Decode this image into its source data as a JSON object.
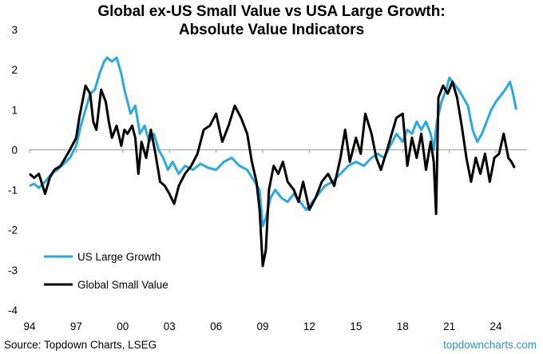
{
  "chart_data": {
    "type": "line",
    "title_line1": "Global ex-US Small Value vs USA Large Growth:",
    "title_line2": "Absolute Value Indicators",
    "xlabel": "",
    "ylabel": "",
    "xlim": [
      1994,
      2026
    ],
    "ylim": [
      -4,
      3
    ],
    "yticks": [
      {
        "v": 3,
        "label": "3"
      },
      {
        "v": 2,
        "label": "2"
      },
      {
        "v": 1,
        "label": "1"
      },
      {
        "v": 0,
        "label": "0"
      },
      {
        "v": -1,
        "label": "-1"
      },
      {
        "v": -2,
        "label": "-2"
      },
      {
        "v": -3,
        "label": "-3"
      },
      {
        "v": -4,
        "label": "-4"
      }
    ],
    "xticks": [
      {
        "v": 1994,
        "label": "94"
      },
      {
        "v": 1997,
        "label": "97"
      },
      {
        "v": 2000,
        "label": "00"
      },
      {
        "v": 2003,
        "label": "03"
      },
      {
        "v": 2006,
        "label": "06"
      },
      {
        "v": 2009,
        "label": "09"
      },
      {
        "v": 2012,
        "label": "12"
      },
      {
        "v": 2015,
        "label": "15"
      },
      {
        "v": 2018,
        "label": "18"
      },
      {
        "v": 2021,
        "label": "21"
      },
      {
        "v": 2024,
        "label": "24"
      }
    ],
    "legend_position": "bottom-left",
    "series": [
      {
        "name": "US Large Growth",
        "color": "#29a9e1",
        "x": [
          1994.0,
          1994.3,
          1994.6,
          1995.0,
          1995.4,
          1995.8,
          1996.2,
          1996.6,
          1997.0,
          1997.3,
          1997.6,
          1997.9,
          1998.2,
          1998.5,
          1998.8,
          1999.0,
          1999.3,
          1999.6,
          1999.9,
          2000.1,
          2000.3,
          2000.5,
          2000.8,
          2001.1,
          2001.4,
          2001.7,
          2002.0,
          2002.3,
          2002.6,
          2002.9,
          2003.2,
          2003.6,
          2004.0,
          2004.5,
          2005.0,
          2005.5,
          2006.0,
          2006.5,
          2007.0,
          2007.5,
          2008.0,
          2008.4,
          2008.8,
          2009.0,
          2009.2,
          2009.5,
          2009.8,
          2010.2,
          2010.6,
          2011.0,
          2011.4,
          2011.8,
          2012.2,
          2012.6,
          2013.0,
          2013.5,
          2014.0,
          2014.5,
          2015.0,
          2015.5,
          2016.0,
          2016.4,
          2016.8,
          2017.2,
          2017.6,
          2018.0,
          2018.3,
          2018.6,
          2018.9,
          2019.2,
          2019.5,
          2019.8,
          2020.0,
          2020.2,
          2020.5,
          2020.8,
          2021.0,
          2021.3,
          2021.6,
          2021.9,
          2022.2,
          2022.5,
          2022.8,
          2023.1,
          2023.4,
          2023.7,
          2024.0,
          2024.3,
          2024.6,
          2024.9,
          2025.1,
          2025.3
        ],
        "y": [
          -0.9,
          -0.85,
          -0.95,
          -0.8,
          -0.6,
          -0.5,
          -0.35,
          -0.2,
          0.1,
          0.6,
          1.0,
          1.4,
          1.5,
          1.9,
          2.2,
          2.3,
          2.2,
          2.3,
          1.9,
          1.5,
          1.2,
          0.9,
          1.1,
          0.4,
          0.6,
          0.2,
          0.4,
          0.0,
          -0.2,
          -0.5,
          -0.3,
          -0.6,
          -0.4,
          -0.5,
          -0.35,
          -0.45,
          -0.5,
          -0.3,
          -0.2,
          -0.4,
          -0.5,
          -0.75,
          -1.0,
          -1.9,
          -1.7,
          -1.2,
          -1.0,
          -1.2,
          -1.3,
          -1.1,
          -1.3,
          -1.5,
          -1.3,
          -1.1,
          -0.9,
          -0.8,
          -0.6,
          -0.4,
          -0.3,
          -0.4,
          -0.2,
          -0.1,
          -0.2,
          0.1,
          0.4,
          0.2,
          0.5,
          0.4,
          0.7,
          0.5,
          0.7,
          0.4,
          0.0,
          0.7,
          1.2,
          1.5,
          1.8,
          1.65,
          1.5,
          1.3,
          1.1,
          0.5,
          0.2,
          0.4,
          0.7,
          1.0,
          1.2,
          1.35,
          1.5,
          1.7,
          1.4,
          1.0
        ]
      },
      {
        "name": "Global Small Value",
        "color": "#000000",
        "x": [
          1994.0,
          1994.3,
          1994.6,
          1995.0,
          1995.3,
          1995.6,
          1996.0,
          1996.3,
          1996.6,
          1997.0,
          1997.2,
          1997.4,
          1997.6,
          1997.9,
          1998.1,
          1998.3,
          1998.6,
          1998.9,
          1999.1,
          1999.3,
          1999.6,
          1999.9,
          2000.1,
          2000.3,
          2000.6,
          2000.8,
          2001.0,
          2001.2,
          2001.5,
          2001.8,
          2002.1,
          2002.4,
          2002.7,
          2003.0,
          2003.3,
          2003.6,
          2004.0,
          2004.4,
          2004.8,
          2005.2,
          2005.6,
          2006.0,
          2006.4,
          2006.8,
          2007.2,
          2007.6,
          2008.0,
          2008.3,
          2008.6,
          2008.8,
          2009.0,
          2009.2,
          2009.4,
          2009.7,
          2010.0,
          2010.3,
          2010.6,
          2011.0,
          2011.3,
          2011.6,
          2012.0,
          2012.4,
          2012.8,
          2013.2,
          2013.6,
          2014.0,
          2014.3,
          2014.6,
          2015.0,
          2015.3,
          2015.6,
          2016.0,
          2016.3,
          2016.6,
          2017.0,
          2017.3,
          2017.6,
          2018.0,
          2018.3,
          2018.6,
          2018.9,
          2019.2,
          2019.5,
          2019.8,
          2020.0,
          2020.15,
          2020.3,
          2020.6,
          2020.9,
          2021.2,
          2021.5,
          2021.8,
          2022.1,
          2022.4,
          2022.7,
          2023.0,
          2023.3,
          2023.6,
          2023.9,
          2024.2,
          2024.5,
          2024.8,
          2025.0,
          2025.2
        ],
        "y": [
          -0.6,
          -0.7,
          -0.6,
          -1.1,
          -0.7,
          -0.5,
          -0.4,
          -0.2,
          0.0,
          0.3,
          0.8,
          1.2,
          1.6,
          1.4,
          0.7,
          0.5,
          1.5,
          1.2,
          0.7,
          0.3,
          0.6,
          0.1,
          0.5,
          0.4,
          0.6,
          0.3,
          -0.6,
          0.2,
          -0.2,
          0.5,
          -0.1,
          -0.8,
          -0.9,
          -1.1,
          -1.35,
          -0.9,
          -0.6,
          -0.4,
          -0.1,
          0.5,
          0.6,
          0.9,
          0.2,
          0.6,
          1.1,
          0.8,
          0.4,
          -0.3,
          -0.8,
          -1.5,
          -2.9,
          -2.5,
          -1.0,
          -0.4,
          -0.6,
          -0.3,
          -0.8,
          -1.0,
          -1.3,
          -0.8,
          -1.5,
          -1.2,
          -0.8,
          -0.6,
          -0.9,
          -0.2,
          0.5,
          -0.3,
          0.3,
          -0.1,
          0.9,
          0.4,
          -0.2,
          -0.5,
          0.0,
          0.4,
          0.8,
          0.9,
          -0.4,
          0.3,
          -0.2,
          0.4,
          -0.5,
          0.2,
          -0.3,
          -1.6,
          1.3,
          1.6,
          1.4,
          1.7,
          1.3,
          0.6,
          -0.2,
          -0.8,
          -0.2,
          -0.6,
          -0.1,
          -0.8,
          -0.2,
          -0.1,
          0.4,
          -0.2,
          -0.3,
          -0.45
        ]
      }
    ]
  },
  "source": "Source: Topdown Charts, LSEG",
  "brand": "topdowncharts.com"
}
